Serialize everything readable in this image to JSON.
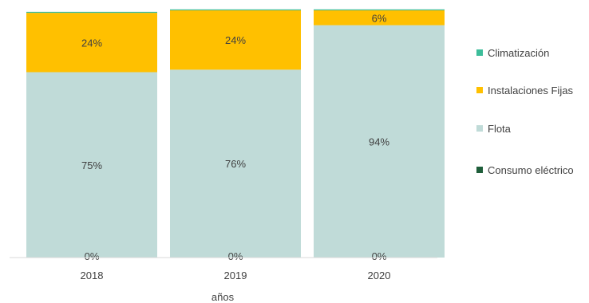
{
  "chart_data": {
    "type": "bar",
    "stacked": true,
    "normalized": true,
    "categories": [
      "2018",
      "2019",
      "2020"
    ],
    "series": [
      {
        "name": "Consumo eléctrico",
        "color": "#1f5e3a",
        "values": [
          0,
          0,
          0
        ],
        "labels": [
          "0%",
          "0%",
          "0%"
        ]
      },
      {
        "name": "Flota",
        "color": "#c0dbd8",
        "values": [
          75,
          76,
          94
        ],
        "labels": [
          "75%",
          "76%",
          "94%"
        ]
      },
      {
        "name": "Instalaciones Fijas",
        "color": "#ffc000",
        "values": [
          24,
          24,
          6
        ],
        "labels": [
          "24%",
          "24%",
          "6%"
        ]
      },
      {
        "name": "Climatización",
        "color": "#3dbd9a",
        "values": [
          0.4,
          0.4,
          0.4
        ],
        "labels": [
          "",
          "",
          ""
        ]
      }
    ],
    "title": "",
    "xlabel": "años",
    "ylabel": "",
    "ylim": [
      0,
      100
    ],
    "grid": false,
    "legend_position": "right"
  }
}
